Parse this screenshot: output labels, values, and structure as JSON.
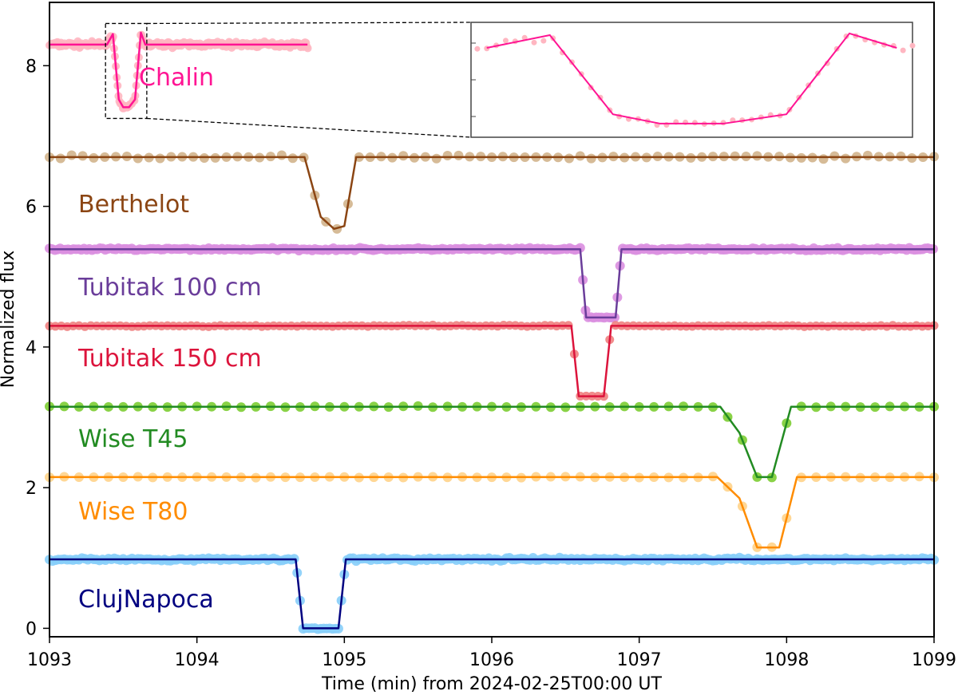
{
  "chart_data": {
    "type": "line",
    "xlabel": "Time (min) from 2024-02-25T00:00 UT",
    "ylabel": "Normalized flux",
    "xlim": [
      1093,
      1099
    ],
    "ylim": [
      -0.12,
      8.9
    ],
    "xticks": [
      1093,
      1094,
      1095,
      1096,
      1097,
      1098,
      1099
    ],
    "xtick_labels": [
      "1093",
      "1094",
      "1095",
      "1096",
      "1097",
      "1098",
      "1099"
    ],
    "yticks": [
      0,
      2,
      4,
      6,
      8
    ],
    "ytick_labels": [
      "0",
      "2",
      "4",
      "6",
      "8"
    ],
    "grid": false,
    "legend": "labels placed beside each light curve",
    "series": [
      {
        "name": "Chalin",
        "line_color": "#ff1493",
        "marker_color": "#ffb6c1",
        "baseline": 8.3,
        "model": {
          "x": [
            1093.0,
            1093.39,
            1093.43,
            1093.47,
            1093.5,
            1093.54,
            1093.58,
            1093.62,
            1093.65,
            1094.75
          ],
          "y": [
            8.3,
            8.3,
            8.45,
            7.52,
            7.41,
            7.41,
            7.52,
            8.47,
            8.3,
            8.3
          ]
        },
        "samples": {
          "x_start": 1093.0,
          "x_end": 1094.75,
          "step": 0.006
        }
      },
      {
        "name": "Berthelot",
        "line_color": "#8b4513",
        "marker_color": "#d2b48c",
        "baseline": 6.7,
        "model": {
          "x": [
            1093.0,
            1094.73,
            1094.84,
            1094.93,
            1095.0,
            1095.08,
            1099.0
          ],
          "y": [
            6.7,
            6.7,
            5.85,
            5.68,
            5.72,
            6.7,
            6.7
          ]
        },
        "samples": {
          "x_start": 1093.0,
          "x_end": 1099.0,
          "step": 0.075
        }
      },
      {
        "name": "Tubitak 100 cm",
        "line_color": "#6a3d9a",
        "marker_color": "#da8fe0",
        "baseline": 5.39,
        "model": {
          "x": [
            1093.0,
            1096.6,
            1096.64,
            1096.84,
            1096.88,
            1099.0
          ],
          "y": [
            5.39,
            5.39,
            4.42,
            4.42,
            5.39,
            5.39
          ]
        },
        "samples": {
          "x_start": 1093.0,
          "x_end": 1099.0,
          "step": 0.018
        }
      },
      {
        "name": "Tubitak 150 cm",
        "line_color": "#dc143c",
        "marker_color": "#f08080",
        "baseline": 4.3,
        "model": {
          "x": [
            1093.0,
            1096.54,
            1096.59,
            1096.76,
            1096.81,
            1099.0
          ],
          "y": [
            4.3,
            4.3,
            3.3,
            3.3,
            4.3,
            4.3
          ]
        },
        "samples": {
          "x_start": 1093.0,
          "x_end": 1099.0,
          "step": 0.04
        }
      },
      {
        "name": "Wise T45",
        "line_color": "#228b22",
        "marker_color": "#7ccd32",
        "baseline": 3.15,
        "model": {
          "x": [
            1093.0,
            1097.55,
            1097.68,
            1097.8,
            1097.9,
            1098.03,
            1099.0
          ],
          "y": [
            3.15,
            3.15,
            2.78,
            2.15,
            2.15,
            3.15,
            3.15
          ]
        },
        "samples": {
          "x_start": 1093.0,
          "x_end": 1099.0,
          "step": 0.1
        }
      },
      {
        "name": "Wise T80",
        "line_color": "#ff8c00",
        "marker_color": "#ffd38a",
        "baseline": 2.15,
        "model": {
          "x": [
            1093.0,
            1097.53,
            1097.68,
            1097.8,
            1097.95,
            1098.07,
            1099.0
          ],
          "y": [
            2.15,
            2.15,
            1.85,
            1.15,
            1.15,
            2.15,
            2.15
          ]
        },
        "samples": {
          "x_start": 1093.0,
          "x_end": 1099.0,
          "step": 0.1
        }
      },
      {
        "name": "ClujNapoca",
        "line_color": "#000080",
        "marker_color": "#87cefa",
        "baseline": 0.98,
        "model": {
          "x": [
            1093.0,
            1094.67,
            1094.72,
            1094.96,
            1095.01,
            1099.0
          ],
          "y": [
            0.98,
            0.98,
            0.0,
            0.0,
            0.98,
            0.98
          ]
        },
        "samples": {
          "x_start": 1093.0,
          "x_end": 1099.0,
          "step": 0.02
        }
      }
    ],
    "inset": {
      "zoom_series": "Chalin",
      "xlim": [
        1093.38,
        1093.66
      ],
      "ylim": [
        7.25,
        8.6
      ],
      "grid": false
    }
  }
}
